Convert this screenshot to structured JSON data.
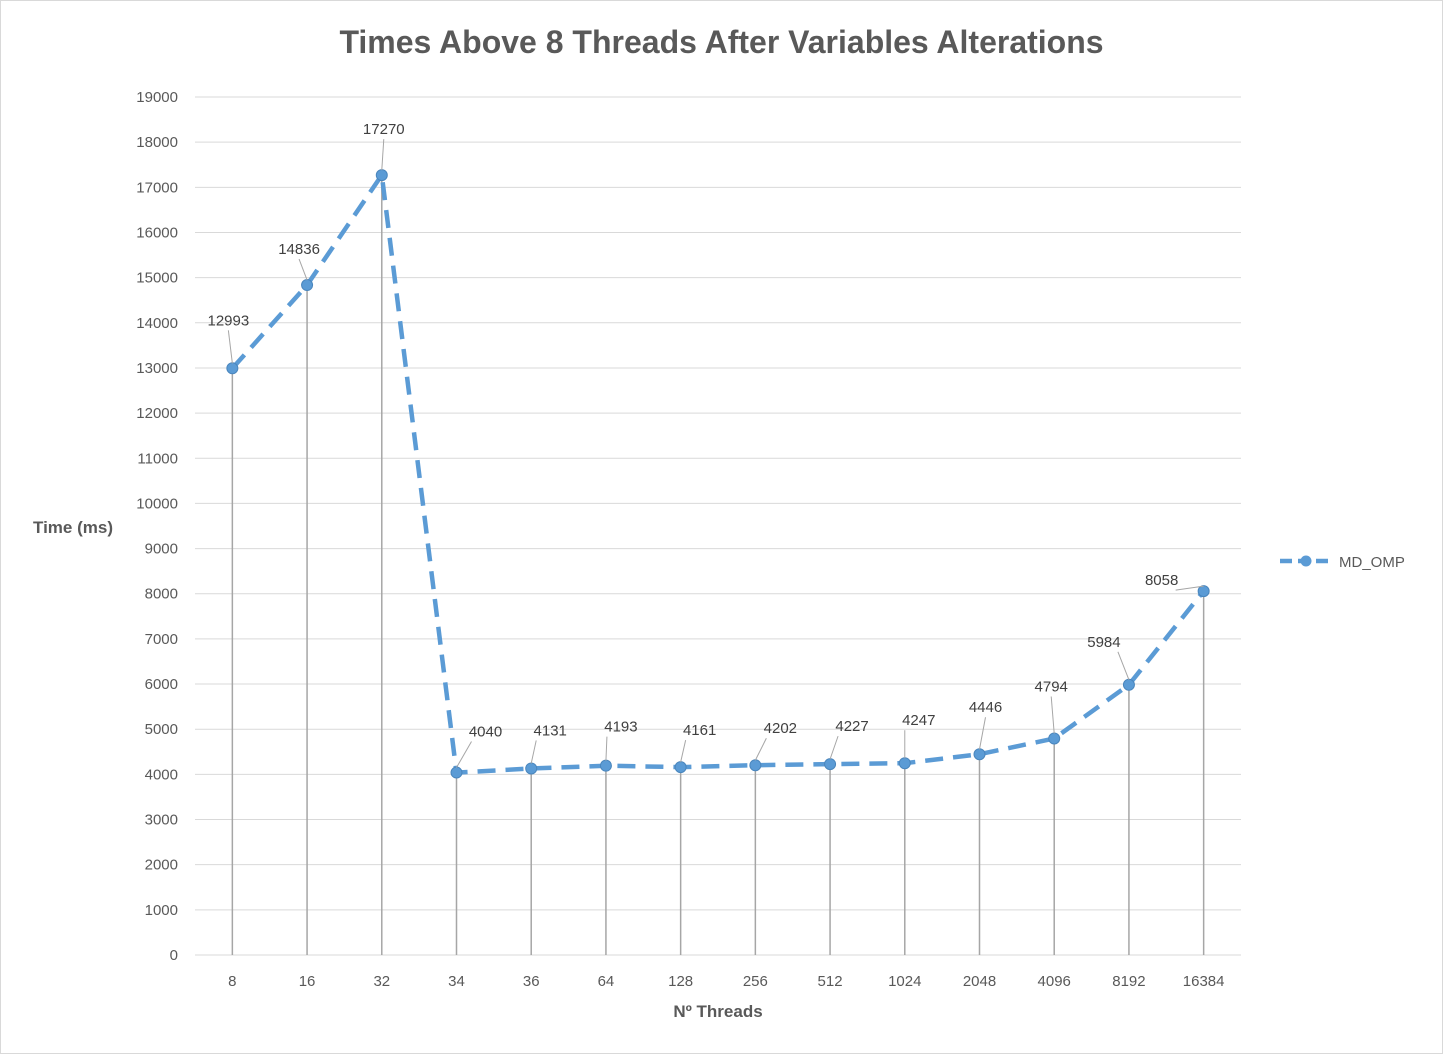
{
  "chart_data": {
    "type": "line",
    "title": "Times Above 8 Threads After Variables Alterations",
    "xlabel": "Nº Threads",
    "ylabel": "Time (ms)",
    "categories": [
      "8",
      "16",
      "32",
      "34",
      "36",
      "64",
      "128",
      "256",
      "512",
      "1024",
      "2048",
      "4096",
      "8192",
      "16384"
    ],
    "series": [
      {
        "name": "MD_OMP",
        "values": [
          12993,
          14836,
          17270,
          4040,
          4131,
          4193,
          4161,
          4202,
          4227,
          4247,
          4446,
          4794,
          5984,
          8058
        ],
        "color": "#5b9bd5",
        "line_style": "dashed",
        "marker": "circle",
        "drop_lines": true,
        "data_labels": true
      }
    ],
    "ylim": [
      0,
      19000
    ],
    "ytick_step": 1000,
    "grid": "horizontal",
    "legend": "right"
  }
}
